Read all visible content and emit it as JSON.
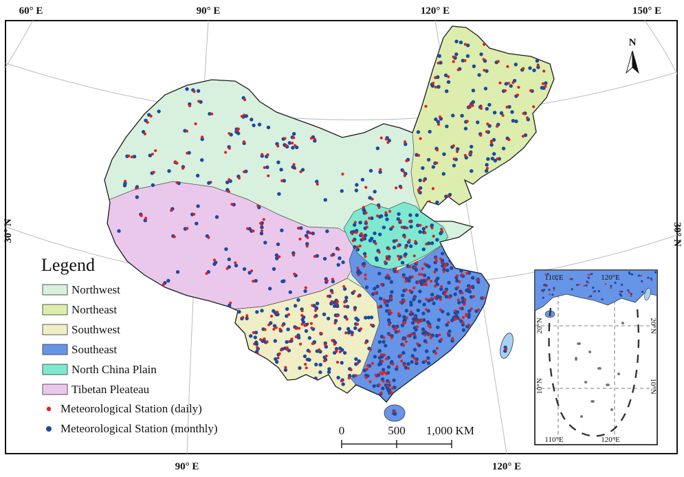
{
  "figure": {
    "outer_labels": {
      "top": [
        "60° E",
        "90° E",
        "120° E",
        "150° E"
      ],
      "bottom": [
        "90° E",
        "120° E"
      ],
      "left": [
        "30° N"
      ],
      "right": [
        "30° N"
      ]
    },
    "north_label": "N",
    "scale_bar": {
      "tick0": "0",
      "tick1": "500",
      "tick2": "1,000 KM"
    },
    "legend": {
      "title": "Legend",
      "regions": [
        {
          "label": "Northwest",
          "color": "#d8f0de"
        },
        {
          "label": "Northeast",
          "color": "#dcedad"
        },
        {
          "label": "Southwest",
          "color": "#efeec5"
        },
        {
          "label": "Southeast",
          "color": "#6695e8"
        },
        {
          "label": "North China Plain",
          "color": "#7fe9cf"
        },
        {
          "label": "Tibetan Pleateau",
          "color": "#eac8ec"
        }
      ],
      "stations": [
        {
          "label": "Meteorological Station (daily)",
          "color": "#e02020"
        },
        {
          "label": "Meteorological Station (monthly)",
          "color": "#1b4a9e"
        }
      ]
    },
    "inset": {
      "top_labels": [
        "110°E",
        "120°E"
      ],
      "bottom_labels": [
        "110°E",
        "120°E"
      ],
      "left_labels": [
        "20°N",
        "10°N"
      ],
      "right_labels": [
        "20°N",
        "10°N"
      ]
    },
    "colors": {
      "graticule": "#b9b9b9",
      "outline": "#1a1a1a",
      "taiwan_fill": "#a7d2ef",
      "island_gray": "#777777"
    },
    "station_distribution": {
      "seed": 11,
      "pair_probability": 0.6,
      "red_only_probability": 0.1,
      "monthly_radius": 2.7,
      "daily_radius": 2.1,
      "counts": {
        "Northwest": 95,
        "Northeast": 120,
        "Southwest": 140,
        "Southeast": 280,
        "NorthChinaPlain": 80,
        "TibetanPlateau": 65,
        "Hainan": 3,
        "Taiwan": 2,
        "InsetCoast": 42
      }
    }
  }
}
